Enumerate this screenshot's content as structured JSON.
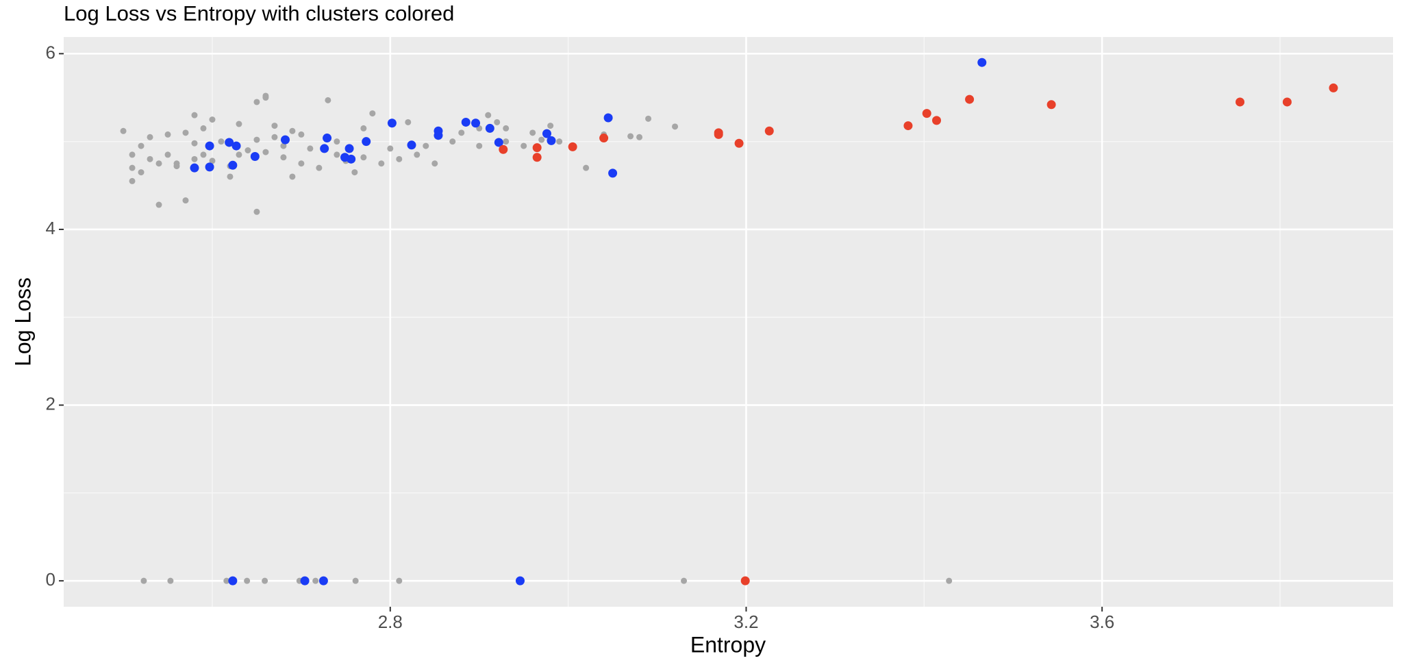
{
  "chart_data": {
    "type": "scatter",
    "title": "Log Loss vs Entropy with clusters colored",
    "x_label": "Entropy",
    "y_label": "Log Loss",
    "xlim": [
      2.433,
      3.927
    ],
    "ylim": [
      -0.295,
      6.19
    ],
    "xticks": [
      2.8,
      3.2,
      3.6
    ],
    "yticks": [
      0,
      2,
      4,
      6
    ],
    "grid": true,
    "series": [
      {
        "color": "#a6a6a6",
        "x": [
          2.523,
          2.553,
          2.616,
          2.639,
          2.659,
          2.698,
          2.716,
          2.761,
          2.81,
          3.13,
          3.428,
          2.5,
          2.51,
          2.51,
          2.51,
          2.52,
          2.52,
          2.53,
          2.53,
          2.54,
          2.54,
          2.55,
          2.55,
          2.56,
          2.56,
          2.57,
          2.57,
          2.58,
          2.58,
          2.58,
          2.59,
          2.59,
          2.6,
          2.6,
          2.61,
          2.62,
          2.62,
          2.63,
          2.63,
          2.64,
          2.65,
          2.65,
          2.65,
          2.66,
          2.66,
          2.66,
          2.67,
          2.67,
          2.68,
          2.68,
          2.69,
          2.69,
          2.7,
          2.7,
          2.71,
          2.72,
          2.73,
          2.74,
          2.74,
          2.75,
          2.76,
          2.77,
          2.77,
          2.78,
          2.79,
          2.8,
          2.81,
          2.82,
          2.83,
          2.84,
          2.85,
          2.87,
          2.88,
          2.9,
          2.9,
          2.91,
          2.92,
          2.93,
          2.93,
          2.95,
          2.96,
          2.97,
          2.98,
          2.99,
          3.02,
          3.04,
          3.07,
          3.08,
          3.09,
          3.12
        ],
        "values": [
          0,
          0,
          0,
          0,
          0,
          0,
          0,
          0,
          0,
          0,
          0,
          5.12,
          4.85,
          4.7,
          4.55,
          4.65,
          4.95,
          5.05,
          4.8,
          4.75,
          4.28,
          5.08,
          4.85,
          4.75,
          4.72,
          4.33,
          5.1,
          4.98,
          5.3,
          4.8,
          4.85,
          5.15,
          5.25,
          4.78,
          5.0,
          4.72,
          4.6,
          5.2,
          4.85,
          4.9,
          5.45,
          5.02,
          4.2,
          5.5,
          5.52,
          4.88,
          5.18,
          5.05,
          4.95,
          4.82,
          4.6,
          5.12,
          4.75,
          5.08,
          4.92,
          4.7,
          5.47,
          4.85,
          5.0,
          4.78,
          4.65,
          5.15,
          4.82,
          5.32,
          4.75,
          4.92,
          4.8,
          5.22,
          4.85,
          4.95,
          4.75,
          5.0,
          5.1,
          4.95,
          5.15,
          5.3,
          5.22,
          5.0,
          5.15,
          4.95,
          5.1,
          5.02,
          5.18,
          5.0,
          4.7,
          5.08,
          5.06,
          5.05,
          5.26,
          5.17
        ]
      },
      {
        "color": "#1a3cf5",
        "x": [
          3.465,
          3.045,
          2.802,
          2.854,
          2.854,
          2.885,
          2.896,
          2.912,
          2.922,
          2.976,
          2.981,
          3.05,
          2.597,
          2.619,
          2.627,
          2.58,
          2.597,
          2.623,
          2.648,
          2.682,
          2.729,
          2.726,
          2.754,
          2.749,
          2.756,
          2.773,
          2.824,
          2.623,
          2.704,
          2.725,
          2.946
        ],
        "values": [
          5.9,
          5.27,
          5.21,
          5.12,
          5.07,
          5.22,
          5.21,
          5.15,
          4.99,
          5.09,
          5.01,
          4.64,
          4.95,
          4.99,
          4.95,
          4.7,
          4.71,
          4.73,
          4.83,
          5.02,
          5.04,
          4.92,
          4.92,
          4.82,
          4.8,
          5.0,
          4.96,
          0,
          0,
          0,
          0
        ]
      },
      {
        "color": "#e8402a",
        "x": [
          3.86,
          3.808,
          3.755,
          3.543,
          3.451,
          3.403,
          3.414,
          3.382,
          3.226,
          3.192,
          3.169,
          3.169,
          3.04,
          3.005,
          2.965,
          2.965,
          2.927,
          3.199
        ],
        "values": [
          5.61,
          5.45,
          5.45,
          5.42,
          5.48,
          5.32,
          5.24,
          5.18,
          5.12,
          4.98,
          5.1,
          5.08,
          5.04,
          4.94,
          4.93,
          4.82,
          4.91,
          0
        ]
      }
    ]
  }
}
